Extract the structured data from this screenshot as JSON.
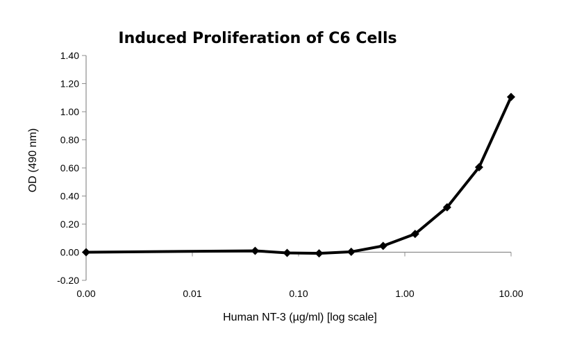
{
  "chart_data": {
    "type": "line",
    "title": "Induced Proliferation of C6 Cells",
    "xlabel": "Human NT-3 (µg/ml) [log scale]",
    "ylabel": "OD (490 nm)",
    "x_scale": "log",
    "x_ticks": [
      0.001,
      0.01,
      0.1,
      1,
      10
    ],
    "x_tick_labels": [
      "0.00",
      "0.01",
      "0.10",
      "1.00",
      "10.00"
    ],
    "ylim": [
      -0.2,
      1.4
    ],
    "y_ticks": [
      -0.2,
      0,
      0.2,
      0.4,
      0.6,
      0.8,
      1.0,
      1.2,
      1.4
    ],
    "y_tick_labels": [
      "-0.20",
      "0.00",
      "0.20",
      "0.40",
      "0.60",
      "0.80",
      "1.00",
      "1.20",
      "1.40"
    ],
    "grid": false,
    "marker": "diamond",
    "line_color": "#000000",
    "series": [
      {
        "x": [
          0.001,
          0.039,
          0.078,
          0.156,
          0.313,
          0.625,
          1.25,
          2.5,
          5.0,
          10.0
        ],
        "values": [
          0.0,
          0.01,
          -0.005,
          -0.008,
          0.003,
          0.045,
          0.13,
          0.32,
          0.605,
          1.105
        ]
      }
    ]
  }
}
